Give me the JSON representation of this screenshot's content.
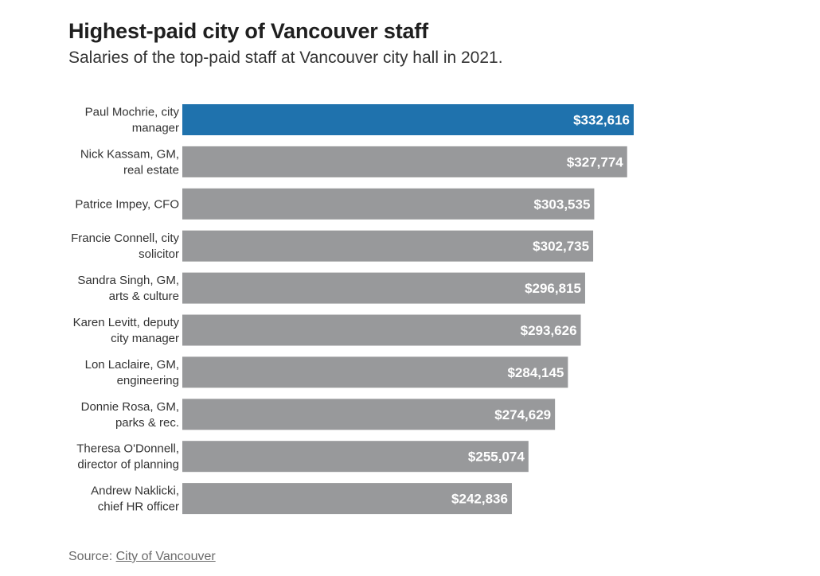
{
  "chart_data": {
    "type": "bar",
    "orientation": "horizontal",
    "title": "Highest-paid city of Vancouver staff",
    "subtitle": "Salaries of the top-paid staff at Vancouver city hall in 2021.",
    "categories": [
      [
        "Paul Mochrie, city",
        "manager"
      ],
      [
        "Nick Kassam, GM,",
        "real estate"
      ],
      [
        "Patrice Impey, CFO"
      ],
      [
        "Francie Connell, city",
        "solicitor"
      ],
      [
        "Sandra Singh, GM,",
        "arts & culture"
      ],
      [
        "Karen Levitt, deputy",
        "city manager"
      ],
      [
        "Lon Laclaire, GM,",
        "engineering"
      ],
      [
        "Donnie Rosa, GM,",
        "parks & rec."
      ],
      [
        "Theresa O'Donnell,",
        "director of planning"
      ],
      [
        "Andrew Naklicki,",
        "chief HR officer"
      ]
    ],
    "values": [
      332616,
      327774,
      303535,
      302735,
      296815,
      293626,
      284145,
      274629,
      255074,
      242836
    ],
    "value_labels": [
      "$332,616",
      "$327,774",
      "$303,535",
      "$302,735",
      "$296,815",
      "$293,626",
      "$284,145",
      "$274,629",
      "$255,074",
      "$242,836"
    ],
    "xlim": [
      0,
      332616
    ],
    "highlight_index": 0,
    "colors": {
      "highlight": "#1f72ad",
      "default": "#98999b"
    },
    "grid": false,
    "legend": "none"
  },
  "source": {
    "prefix": "Source: ",
    "link_text": "City of Vancouver"
  }
}
